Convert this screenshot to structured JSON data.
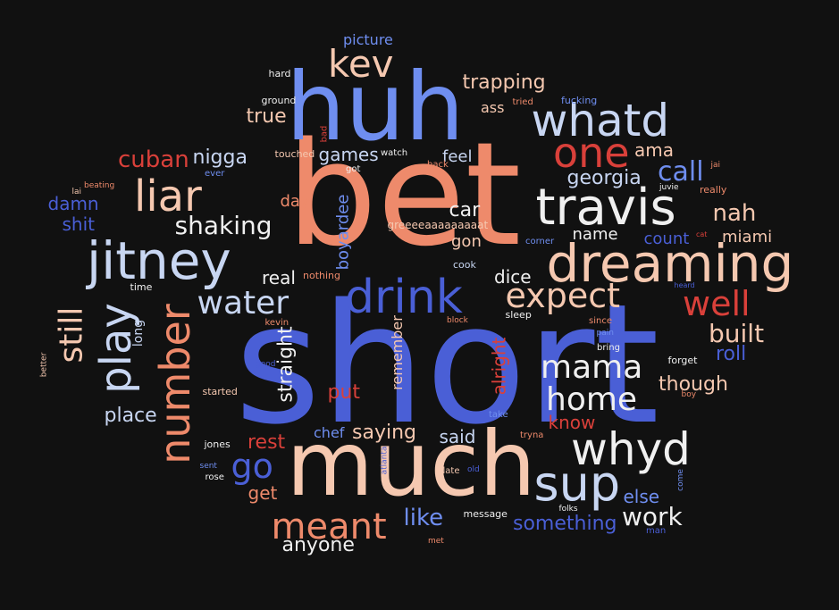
{
  "background": "#111111",
  "palette": {
    "blue_dark": "#4a5fd6",
    "blue_mid": "#6f8ef0",
    "blue_light": "#c8d6f2",
    "white": "#f0f0f0",
    "peach_light": "#f5c8b0",
    "salmon": "#ee8a6b",
    "red": "#d9403a"
  },
  "words": [
    {
      "text": "short"
    },
    {
      "text": "bet"
    },
    {
      "text": "much"
    },
    {
      "text": "huh"
    },
    {
      "text": "dreaming"
    },
    {
      "text": "travis"
    },
    {
      "text": "jitney"
    },
    {
      "text": "drink"
    },
    {
      "text": "whatd"
    },
    {
      "text": "whyd"
    },
    {
      "text": "sup"
    },
    {
      "text": "one"
    },
    {
      "text": "kev"
    },
    {
      "text": "liar"
    },
    {
      "text": "number"
    },
    {
      "text": "play"
    },
    {
      "text": "expect"
    },
    {
      "text": "meant"
    },
    {
      "text": "mama"
    },
    {
      "text": "home"
    },
    {
      "text": "water"
    },
    {
      "text": "well"
    },
    {
      "text": "still"
    },
    {
      "text": "go"
    },
    {
      "text": "call"
    },
    {
      "text": "shaking"
    },
    {
      "text": "work"
    },
    {
      "text": "built"
    },
    {
      "text": "cuban"
    },
    {
      "text": "like"
    },
    {
      "text": "nah"
    },
    {
      "text": "trapping"
    },
    {
      "text": "straight"
    },
    {
      "text": "something"
    },
    {
      "text": "though"
    },
    {
      "text": "nigga"
    },
    {
      "text": "alright"
    },
    {
      "text": "place"
    },
    {
      "text": "true"
    },
    {
      "text": "put"
    },
    {
      "text": "saying"
    },
    {
      "text": "rest"
    },
    {
      "text": "anyone"
    },
    {
      "text": "games"
    },
    {
      "text": "georgia"
    },
    {
      "text": "roll"
    },
    {
      "text": "car"
    },
    {
      "text": "dice"
    },
    {
      "text": "shit"
    },
    {
      "text": "damn"
    },
    {
      "text": "said"
    },
    {
      "text": "miami"
    },
    {
      "text": "count"
    },
    {
      "text": "real"
    },
    {
      "text": "know"
    },
    {
      "text": "else"
    },
    {
      "text": "gon"
    },
    {
      "text": "name"
    },
    {
      "text": "ama"
    },
    {
      "text": "feel"
    },
    {
      "text": "boyardee"
    },
    {
      "text": "remember"
    },
    {
      "text": "get"
    },
    {
      "text": "day"
    },
    {
      "text": "picture"
    },
    {
      "text": "chef"
    },
    {
      "text": "ass"
    },
    {
      "text": "long"
    },
    {
      "text": "greeeeaaaaaaaaat"
    },
    {
      "text": "cook"
    },
    {
      "text": "sleep"
    },
    {
      "text": "jones"
    },
    {
      "text": "started"
    },
    {
      "text": "time"
    },
    {
      "text": "nothing"
    },
    {
      "text": "touched"
    },
    {
      "text": "ground"
    },
    {
      "text": "hard"
    },
    {
      "text": "fucking"
    },
    {
      "text": "tried"
    },
    {
      "text": "bad"
    },
    {
      "text": "got"
    },
    {
      "text": "watch"
    },
    {
      "text": "back"
    },
    {
      "text": "ever"
    },
    {
      "text": "beating"
    },
    {
      "text": "lai"
    },
    {
      "text": "jai"
    },
    {
      "text": "really"
    },
    {
      "text": "juvie"
    },
    {
      "text": "corner"
    },
    {
      "text": "cat"
    },
    {
      "text": "heard"
    },
    {
      "text": "block"
    },
    {
      "text": "since"
    },
    {
      "text": "pain"
    },
    {
      "text": "bring"
    },
    {
      "text": "forget"
    },
    {
      "text": "boy"
    },
    {
      "text": "kevin"
    },
    {
      "text": "good"
    },
    {
      "text": "better"
    },
    {
      "text": "take"
    },
    {
      "text": "tryna"
    },
    {
      "text": "sent"
    },
    {
      "text": "rose"
    },
    {
      "text": "atlanta"
    },
    {
      "text": "late"
    },
    {
      "text": "old"
    },
    {
      "text": "come"
    },
    {
      "text": "folks"
    },
    {
      "text": "man"
    },
    {
      "text": "message"
    },
    {
      "text": "met"
    }
  ]
}
